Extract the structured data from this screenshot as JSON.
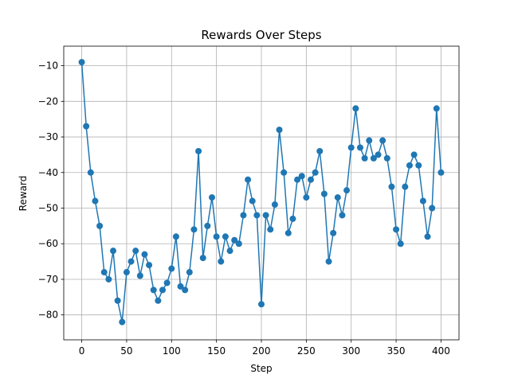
{
  "chart_data": {
    "type": "line",
    "title": "Rewards Over Steps",
    "xlabel": "Step",
    "ylabel": "Reward",
    "xlim": [
      -20,
      420
    ],
    "ylim": [
      -87,
      -4.5
    ],
    "xticks": [
      0,
      50,
      100,
      150,
      200,
      250,
      300,
      350,
      400
    ],
    "yticks": [
      -80,
      -70,
      -60,
      -50,
      -40,
      -30,
      -20,
      -10
    ],
    "grid": true,
    "marker": "circle",
    "series": [
      {
        "color": "#1f77b4",
        "x": [
          0,
          5,
          10,
          15,
          20,
          25,
          30,
          35,
          40,
          45,
          50,
          55,
          60,
          65,
          70,
          75,
          80,
          85,
          90,
          95,
          100,
          105,
          110,
          115,
          120,
          125,
          130,
          135,
          140,
          145,
          150,
          155,
          160,
          165,
          170,
          175,
          180,
          185,
          190,
          195,
          200,
          205,
          210,
          215,
          220,
          225,
          230,
          235,
          240,
          245,
          250,
          255,
          260,
          265,
          270,
          275,
          280,
          285,
          290,
          295,
          300,
          305,
          310,
          315,
          320,
          325,
          330,
          335,
          340,
          345,
          350,
          355,
          360,
          365,
          370,
          375,
          380,
          385,
          390,
          395,
          400
        ],
        "y": [
          -9,
          -27,
          -40,
          -48,
          -55,
          -68,
          -70,
          -62,
          -76,
          -82,
          -68,
          -65,
          -62,
          -69,
          -63,
          -66,
          -73,
          -76,
          -73,
          -71,
          -67,
          -58,
          -72,
          -73,
          -68,
          -56,
          -34,
          -64,
          -55,
          -47,
          -58,
          -65,
          -58,
          -62,
          -59,
          -60,
          -52,
          -42,
          -48,
          -52,
          -77,
          -52,
          -56,
          -49,
          -28,
          -40,
          -57,
          -53,
          -42,
          -41,
          -47,
          -42,
          -40,
          -34,
          -46,
          -65,
          -57,
          -47,
          -52,
          -45,
          -33,
          -22,
          -33,
          -36,
          -31,
          -36,
          -35,
          -31,
          -36,
          -44,
          -56,
          -60,
          -44,
          -38,
          -35,
          -38,
          -48,
          -58,
          -50,
          -22,
          -40
        ]
      }
    ]
  }
}
